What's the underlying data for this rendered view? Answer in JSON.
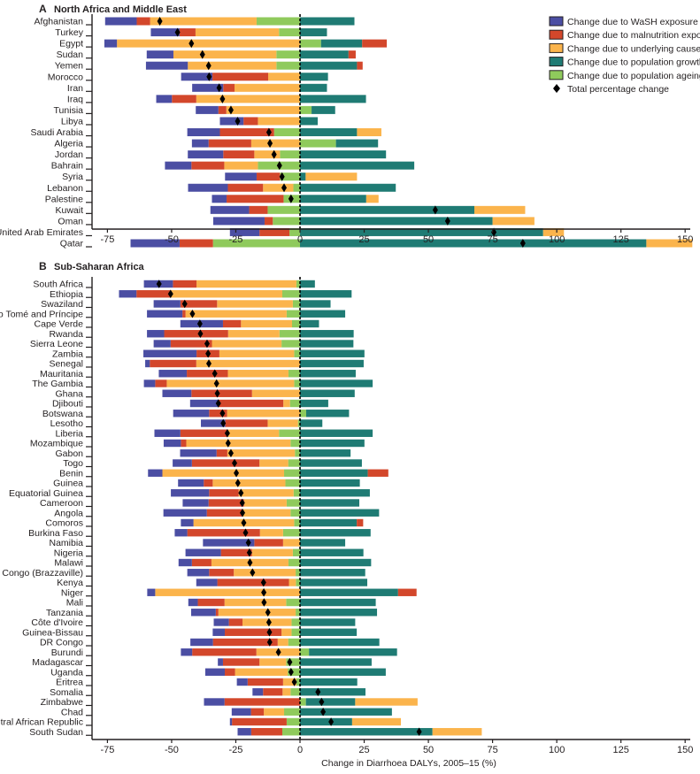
{
  "colors": {
    "wash": "#4b4ea3",
    "malnutrition": "#d3472b",
    "cause": "#fbb44c",
    "growth": "#1f7b74",
    "ageing": "#8fca5c",
    "total": "#000000"
  },
  "legend": [
    {
      "key": "wash",
      "label": "Change due to WaSH exposure"
    },
    {
      "key": "malnutrition",
      "label": "Change due to malnutrition exposure"
    },
    {
      "key": "cause",
      "label": "Change due to underlying cause rate"
    },
    {
      "key": "growth",
      "label": "Change due to population growth"
    },
    {
      "key": "ageing",
      "label": "Change due to population ageing"
    },
    {
      "key": "total",
      "label": "Total percentage change"
    }
  ],
  "chart_data": [
    {
      "type": "bar",
      "orientation": "horizontal",
      "stacked": true,
      "panel_letter": "A",
      "title": "North Africa and Middle East",
      "xlabel": "",
      "xlim": [
        -81,
        152
      ],
      "xticks": [
        "-75",
        "-50",
        "-25",
        "0",
        "25",
        "50",
        "75",
        "100",
        "125",
        "150"
      ],
      "legend_position": "top-right",
      "component_keys": [
        "wash",
        "malnutrition",
        "cause",
        "growth",
        "ageing",
        "total"
      ],
      "rows": [
        {
          "name": "Afghanistan",
          "v": [
            -12.3,
            -5.2,
            -41.5,
            21.2,
            -16.9,
            -54.6
          ]
        },
        {
          "name": "Turkey",
          "v": [
            -11.2,
            -6.2,
            -32.5,
            10.5,
            -8.2,
            -47.7
          ]
        },
        {
          "name": "Egypt",
          "v": [
            -4.9,
            9.6,
            -71.3,
            16.0,
            8.2,
            -42.3
          ]
        },
        {
          "name": "Sudan",
          "v": [
            -10.4,
            2.8,
            -40.1,
            18.9,
            -9.2,
            -38.0
          ]
        },
        {
          "name": "Yemen",
          "v": [
            -16.3,
            2.2,
            -34.5,
            22.2,
            -9.2,
            -35.6
          ]
        },
        {
          "name": "Morocco",
          "v": [
            -12.2,
            -21.7,
            -12.4,
            10.9,
            0,
            -35.4
          ]
        },
        {
          "name": "Iran",
          "v": [
            -12.1,
            -4.4,
            -25.5,
            10.5,
            0,
            -31.5
          ]
        },
        {
          "name": "Iraq",
          "v": [
            -6.1,
            -9.5,
            -40.4,
            25.7,
            0,
            -30.2
          ]
        },
        {
          "name": "Tunisia",
          "v": [
            -8.8,
            -3.1,
            -28.7,
            9.2,
            4.5,
            -26.9
          ]
        },
        {
          "name": "Libya",
          "v": [
            -9.2,
            -5.6,
            -16.4,
            6.9,
            0,
            -24.3
          ]
        },
        {
          "name": "Saudi Arabia",
          "v": [
            -12.7,
            -21.1,
            9.5,
            22.2,
            -10.1,
            -12.1
          ]
        },
        {
          "name": "Algeria",
          "v": [
            -6.5,
            -16.6,
            -19.0,
            16.4,
            14.0,
            -11.7
          ]
        },
        {
          "name": "Jordan",
          "v": [
            -13.8,
            -12.1,
            -10.0,
            33.5,
            -7.8,
            -10.1
          ]
        },
        {
          "name": "Bahrain",
          "v": [
            -10.3,
            -12.8,
            -13.1,
            44.5,
            -16.4,
            -8.0
          ]
        },
        {
          "name": "Syria",
          "v": [
            -12.3,
            -9.1,
            20.0,
            2.2,
            -7.8,
            -7.0
          ]
        },
        {
          "name": "Lebanon",
          "v": [
            -15.5,
            -13.7,
            -11.8,
            37.3,
            -2.6,
            -6.2
          ]
        },
        {
          "name": "Palestine",
          "v": [
            -5.7,
            -22.2,
            4.8,
            25.8,
            -6.4,
            -3.5
          ]
        },
        {
          "name": "Kuwait",
          "v": [
            -15.1,
            -7.2,
            19.8,
            67.9,
            -12.6,
            52.7
          ]
        },
        {
          "name": "Oman",
          "v": [
            -20.0,
            -3.2,
            16.3,
            75.0,
            -10.6,
            57.5
          ]
        },
        {
          "name": "United Arab Emirates",
          "v": [
            -11.5,
            -11.7,
            8.1,
            94.7,
            -4.1,
            75.5
          ]
        },
        {
          "name": "Qatar",
          "v": [
            -19.1,
            -13.0,
            17.9,
            134.9,
            -33.9,
            86.8
          ]
        }
      ]
    },
    {
      "type": "bar",
      "orientation": "horizontal",
      "stacked": true,
      "panel_letter": "B",
      "title": "Sub-Saharan Africa",
      "xlabel": "Change in Diarrhoea DALYs, 2005–15 (%)",
      "xlim": [
        -81,
        152
      ],
      "xticks": [
        "-75",
        "-50",
        "-25",
        "0",
        "25",
        "50",
        "75",
        "100",
        "125",
        "150"
      ],
      "component_keys": [
        "wash",
        "malnutrition",
        "cause",
        "growth",
        "ageing",
        "total"
      ],
      "rows": [
        {
          "name": "South Africa",
          "v": [
            -11.3,
            -9.2,
            -38.9,
            5.8,
            -1.4,
            -54.9
          ]
        },
        {
          "name": "Ethiopia",
          "v": [
            -6.8,
            -13.3,
            -43.5,
            20.1,
            -6.9,
            -50.4
          ]
        },
        {
          "name": "Swaziland",
          "v": [
            -10.4,
            -14.3,
            -29.5,
            11.9,
            -2.8,
            -44.9
          ]
        },
        {
          "name": "São Tomé and Príncipe",
          "v": [
            -13.8,
            -1.2,
            -39.4,
            17.6,
            -5.2,
            -41.9
          ]
        },
        {
          "name": "Cape Verde",
          "v": [
            -16.6,
            -7.0,
            -19.9,
            7.4,
            -3.1,
            -39.0
          ]
        },
        {
          "name": "Rwanda",
          "v": [
            -6.7,
            -24.9,
            -20.0,
            20.9,
            -8.0,
            -38.8
          ]
        },
        {
          "name": "Sierra Leone",
          "v": [
            -6.6,
            -16.1,
            -27.1,
            20.8,
            -7.2,
            -36.2
          ]
        },
        {
          "name": "Zambia",
          "v": [
            -20.7,
            -8.9,
            -29.1,
            25.1,
            -2.3,
            -35.8
          ]
        },
        {
          "name": "Senegal",
          "v": [
            -1.8,
            -18.1,
            -40.4,
            24.8,
            0,
            -35.5
          ]
        },
        {
          "name": "Mauritania",
          "v": [
            -10.9,
            -16.0,
            -23.6,
            21.7,
            -4.5,
            -33.2
          ]
        },
        {
          "name": "The Gambia",
          "v": [
            -4.4,
            -4.5,
            -49.6,
            28.3,
            -2.3,
            -32.5
          ]
        },
        {
          "name": "Ghana",
          "v": [
            -11.3,
            -23.6,
            -18.7,
            21.3,
            0,
            -32.2
          ]
        },
        {
          "name": "Djibouti",
          "v": [
            -11.0,
            -25.3,
            -2.6,
            11.0,
            -3.9,
            -31.8
          ]
        },
        {
          "name": "Botswana",
          "v": [
            -14.0,
            -7.0,
            -28.4,
            16.7,
            2.4,
            -30.2
          ]
        },
        {
          "name": "Lesotho",
          "v": [
            -9.5,
            -16.5,
            -11.8,
            8.7,
            -0.8,
            -29.9
          ]
        },
        {
          "name": "Liberia",
          "v": [
            -10.1,
            -18.5,
            -19.9,
            28.3,
            -8.2,
            -28.3
          ]
        },
        {
          "name": "Mozambique",
          "v": [
            -6.7,
            -2.1,
            -40.6,
            25.1,
            -3.7,
            -28.0
          ]
        },
        {
          "name": "Gabon",
          "v": [
            -14.2,
            -4.2,
            -26.3,
            19.7,
            -2.0,
            -26.9
          ]
        },
        {
          "name": "Togo",
          "v": [
            -7.5,
            -26.3,
            -11.2,
            24.1,
            -4.6,
            -25.5
          ]
        },
        {
          "name": "Benin",
          "v": [
            -5.6,
            8.0,
            -47.4,
            26.4,
            -6.2,
            -24.8
          ]
        },
        {
          "name": "Guinea",
          "v": [
            -10.0,
            -3.5,
            -28.3,
            23.3,
            -5.7,
            -24.2
          ]
        },
        {
          "name": "Equatorial Guinea",
          "v": [
            -14.9,
            -11.5,
            -21.4,
            27.2,
            -2.5,
            -23.0
          ]
        },
        {
          "name": "Cameroon",
          "v": [
            -10.1,
            -13.8,
            -16.6,
            23.1,
            -5.2,
            -22.5
          ]
        },
        {
          "name": "Angola",
          "v": [
            -16.9,
            -13.9,
            -18.7,
            30.8,
            -3.7,
            -22.4
          ]
        },
        {
          "name": "Comoros",
          "v": [
            -4.9,
            2.5,
            -39.2,
            22.1,
            -2.3,
            -21.9
          ]
        },
        {
          "name": "Burkina Faso",
          "v": [
            -4.9,
            -28.3,
            -9.0,
            27.5,
            -6.6,
            -21.2
          ]
        },
        {
          "name": "Namibia",
          "v": [
            -20.0,
            -11.2,
            -6.6,
            17.6,
            0,
            -20.1
          ]
        },
        {
          "name": "Nigeria",
          "v": [
            -13.8,
            -12.1,
            -15.9,
            24.7,
            -2.8,
            -19.7
          ]
        },
        {
          "name": "Malawi",
          "v": [
            -5.2,
            -7.6,
            -30.0,
            27.7,
            -4.5,
            -19.5
          ]
        },
        {
          "name": "Congo (Brazzaville)",
          "v": [
            -8.5,
            -9.6,
            -24.1,
            25.4,
            -1.7,
            -18.5
          ]
        },
        {
          "name": "Kenya",
          "v": [
            -8.2,
            -27.9,
            -2.7,
            26.2,
            -1.6,
            -14.2
          ]
        },
        {
          "name": "Niger",
          "v": [
            -3.1,
            7.2,
            -56.4,
            38.2,
            0,
            -14.1
          ]
        },
        {
          "name": "Mali",
          "v": [
            -3.7,
            -10.4,
            -24.0,
            29.5,
            -5.4,
            -14.0
          ]
        },
        {
          "name": "Tanzania",
          "v": [
            -9.6,
            -1.0,
            -30.1,
            30.0,
            -1.7,
            -12.5
          ]
        },
        {
          "name": "Côte d'Ivoire",
          "v": [
            -5.9,
            -5.3,
            -19.1,
            21.5,
            -3.3,
            -12.1
          ]
        },
        {
          "name": "Guinea-Bissau",
          "v": [
            -4.7,
            -22.1,
            -3.9,
            22.1,
            -3.3,
            -11.9
          ]
        },
        {
          "name": "DR Congo",
          "v": [
            -8.8,
            -25.2,
            -4.1,
            30.9,
            -4.6,
            -11.8
          ]
        },
        {
          "name": "Burundi",
          "v": [
            -4.4,
            -25.0,
            -17.0,
            34.3,
            3.5,
            -8.4
          ]
        },
        {
          "name": "Madagascar",
          "v": [
            -2.0,
            -14.2,
            -10.4,
            27.9,
            -5.4,
            -4.0
          ]
        },
        {
          "name": "Uganda",
          "v": [
            -7.6,
            -4.0,
            -20.5,
            33.4,
            -4.8,
            -3.5
          ]
        },
        {
          "name": "Eritrea",
          "v": [
            -4.2,
            -13.8,
            -5.2,
            22.3,
            -1.4,
            -2.2
          ]
        },
        {
          "name": "Somalia",
          "v": [
            -4.1,
            -7.6,
            -3.1,
            25.5,
            -3.7,
            7.0
          ]
        },
        {
          "name": "Zimbabwe",
          "v": [
            -8.0,
            -29.4,
            24.3,
            19.2,
            2.3,
            8.4
          ]
        },
        {
          "name": "Chad",
          "v": [
            -7.5,
            -5.0,
            -7.9,
            35.8,
            -6.2,
            9.0
          ]
        },
        {
          "name": "Central African Republic",
          "v": [
            -0.8,
            -21.3,
            19.0,
            20.3,
            -5.2,
            12.1
          ]
        },
        {
          "name": "South Sudan",
          "v": [
            -5.3,
            -12.1,
            19.2,
            51.6,
            -6.9,
            46.4
          ]
        }
      ]
    }
  ]
}
